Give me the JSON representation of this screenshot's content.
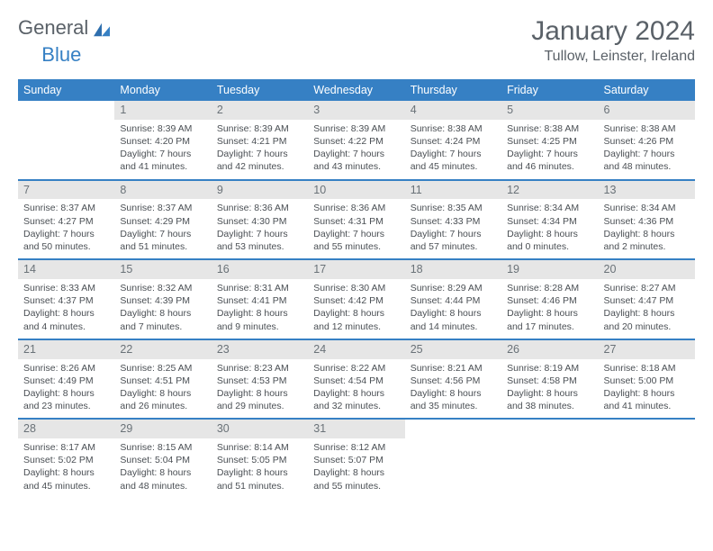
{
  "brand": {
    "part1": "General",
    "part2": "Blue"
  },
  "title": "January 2024",
  "location": "Tullow, Leinster, Ireland",
  "colors": {
    "header_bg": "#3680c4",
    "header_text": "#ffffff",
    "daynum_bg": "#e6e6e6",
    "rule": "#3680c4",
    "body_text": "#4a4f54",
    "title_text": "#5a6168"
  },
  "typography": {
    "title_fontsize": 30,
    "location_fontsize": 16,
    "dayhead_fontsize": 12.5,
    "cell_fontsize": 10.5
  },
  "day_headers": [
    "Sunday",
    "Monday",
    "Tuesday",
    "Wednesday",
    "Thursday",
    "Friday",
    "Saturday"
  ],
  "weeks": [
    [
      {
        "n": "",
        "sr": "",
        "ss": "",
        "dl1": "",
        "dl2": "",
        "empty": true
      },
      {
        "n": "1",
        "sr": "Sunrise: 8:39 AM",
        "ss": "Sunset: 4:20 PM",
        "dl1": "Daylight: 7 hours",
        "dl2": "and 41 minutes."
      },
      {
        "n": "2",
        "sr": "Sunrise: 8:39 AM",
        "ss": "Sunset: 4:21 PM",
        "dl1": "Daylight: 7 hours",
        "dl2": "and 42 minutes."
      },
      {
        "n": "3",
        "sr": "Sunrise: 8:39 AM",
        "ss": "Sunset: 4:22 PM",
        "dl1": "Daylight: 7 hours",
        "dl2": "and 43 minutes."
      },
      {
        "n": "4",
        "sr": "Sunrise: 8:38 AM",
        "ss": "Sunset: 4:24 PM",
        "dl1": "Daylight: 7 hours",
        "dl2": "and 45 minutes."
      },
      {
        "n": "5",
        "sr": "Sunrise: 8:38 AM",
        "ss": "Sunset: 4:25 PM",
        "dl1": "Daylight: 7 hours",
        "dl2": "and 46 minutes."
      },
      {
        "n": "6",
        "sr": "Sunrise: 8:38 AM",
        "ss": "Sunset: 4:26 PM",
        "dl1": "Daylight: 7 hours",
        "dl2": "and 48 minutes."
      }
    ],
    [
      {
        "n": "7",
        "sr": "Sunrise: 8:37 AM",
        "ss": "Sunset: 4:27 PM",
        "dl1": "Daylight: 7 hours",
        "dl2": "and 50 minutes."
      },
      {
        "n": "8",
        "sr": "Sunrise: 8:37 AM",
        "ss": "Sunset: 4:29 PM",
        "dl1": "Daylight: 7 hours",
        "dl2": "and 51 minutes."
      },
      {
        "n": "9",
        "sr": "Sunrise: 8:36 AM",
        "ss": "Sunset: 4:30 PM",
        "dl1": "Daylight: 7 hours",
        "dl2": "and 53 minutes."
      },
      {
        "n": "10",
        "sr": "Sunrise: 8:36 AM",
        "ss": "Sunset: 4:31 PM",
        "dl1": "Daylight: 7 hours",
        "dl2": "and 55 minutes."
      },
      {
        "n": "11",
        "sr": "Sunrise: 8:35 AM",
        "ss": "Sunset: 4:33 PM",
        "dl1": "Daylight: 7 hours",
        "dl2": "and 57 minutes."
      },
      {
        "n": "12",
        "sr": "Sunrise: 8:34 AM",
        "ss": "Sunset: 4:34 PM",
        "dl1": "Daylight: 8 hours",
        "dl2": "and 0 minutes."
      },
      {
        "n": "13",
        "sr": "Sunrise: 8:34 AM",
        "ss": "Sunset: 4:36 PM",
        "dl1": "Daylight: 8 hours",
        "dl2": "and 2 minutes."
      }
    ],
    [
      {
        "n": "14",
        "sr": "Sunrise: 8:33 AM",
        "ss": "Sunset: 4:37 PM",
        "dl1": "Daylight: 8 hours",
        "dl2": "and 4 minutes."
      },
      {
        "n": "15",
        "sr": "Sunrise: 8:32 AM",
        "ss": "Sunset: 4:39 PM",
        "dl1": "Daylight: 8 hours",
        "dl2": "and 7 minutes."
      },
      {
        "n": "16",
        "sr": "Sunrise: 8:31 AM",
        "ss": "Sunset: 4:41 PM",
        "dl1": "Daylight: 8 hours",
        "dl2": "and 9 minutes."
      },
      {
        "n": "17",
        "sr": "Sunrise: 8:30 AM",
        "ss": "Sunset: 4:42 PM",
        "dl1": "Daylight: 8 hours",
        "dl2": "and 12 minutes."
      },
      {
        "n": "18",
        "sr": "Sunrise: 8:29 AM",
        "ss": "Sunset: 4:44 PM",
        "dl1": "Daylight: 8 hours",
        "dl2": "and 14 minutes."
      },
      {
        "n": "19",
        "sr": "Sunrise: 8:28 AM",
        "ss": "Sunset: 4:46 PM",
        "dl1": "Daylight: 8 hours",
        "dl2": "and 17 minutes."
      },
      {
        "n": "20",
        "sr": "Sunrise: 8:27 AM",
        "ss": "Sunset: 4:47 PM",
        "dl1": "Daylight: 8 hours",
        "dl2": "and 20 minutes."
      }
    ],
    [
      {
        "n": "21",
        "sr": "Sunrise: 8:26 AM",
        "ss": "Sunset: 4:49 PM",
        "dl1": "Daylight: 8 hours",
        "dl2": "and 23 minutes."
      },
      {
        "n": "22",
        "sr": "Sunrise: 8:25 AM",
        "ss": "Sunset: 4:51 PM",
        "dl1": "Daylight: 8 hours",
        "dl2": "and 26 minutes."
      },
      {
        "n": "23",
        "sr": "Sunrise: 8:23 AM",
        "ss": "Sunset: 4:53 PM",
        "dl1": "Daylight: 8 hours",
        "dl2": "and 29 minutes."
      },
      {
        "n": "24",
        "sr": "Sunrise: 8:22 AM",
        "ss": "Sunset: 4:54 PM",
        "dl1": "Daylight: 8 hours",
        "dl2": "and 32 minutes."
      },
      {
        "n": "25",
        "sr": "Sunrise: 8:21 AM",
        "ss": "Sunset: 4:56 PM",
        "dl1": "Daylight: 8 hours",
        "dl2": "and 35 minutes."
      },
      {
        "n": "26",
        "sr": "Sunrise: 8:19 AM",
        "ss": "Sunset: 4:58 PM",
        "dl1": "Daylight: 8 hours",
        "dl2": "and 38 minutes."
      },
      {
        "n": "27",
        "sr": "Sunrise: 8:18 AM",
        "ss": "Sunset: 5:00 PM",
        "dl1": "Daylight: 8 hours",
        "dl2": "and 41 minutes."
      }
    ],
    [
      {
        "n": "28",
        "sr": "Sunrise: 8:17 AM",
        "ss": "Sunset: 5:02 PM",
        "dl1": "Daylight: 8 hours",
        "dl2": "and 45 minutes."
      },
      {
        "n": "29",
        "sr": "Sunrise: 8:15 AM",
        "ss": "Sunset: 5:04 PM",
        "dl1": "Daylight: 8 hours",
        "dl2": "and 48 minutes."
      },
      {
        "n": "30",
        "sr": "Sunrise: 8:14 AM",
        "ss": "Sunset: 5:05 PM",
        "dl1": "Daylight: 8 hours",
        "dl2": "and 51 minutes."
      },
      {
        "n": "31",
        "sr": "Sunrise: 8:12 AM",
        "ss": "Sunset: 5:07 PM",
        "dl1": "Daylight: 8 hours",
        "dl2": "and 55 minutes."
      },
      {
        "n": "",
        "sr": "",
        "ss": "",
        "dl1": "",
        "dl2": "",
        "empty": true
      },
      {
        "n": "",
        "sr": "",
        "ss": "",
        "dl1": "",
        "dl2": "",
        "empty": true
      },
      {
        "n": "",
        "sr": "",
        "ss": "",
        "dl1": "",
        "dl2": "",
        "empty": true
      }
    ]
  ]
}
